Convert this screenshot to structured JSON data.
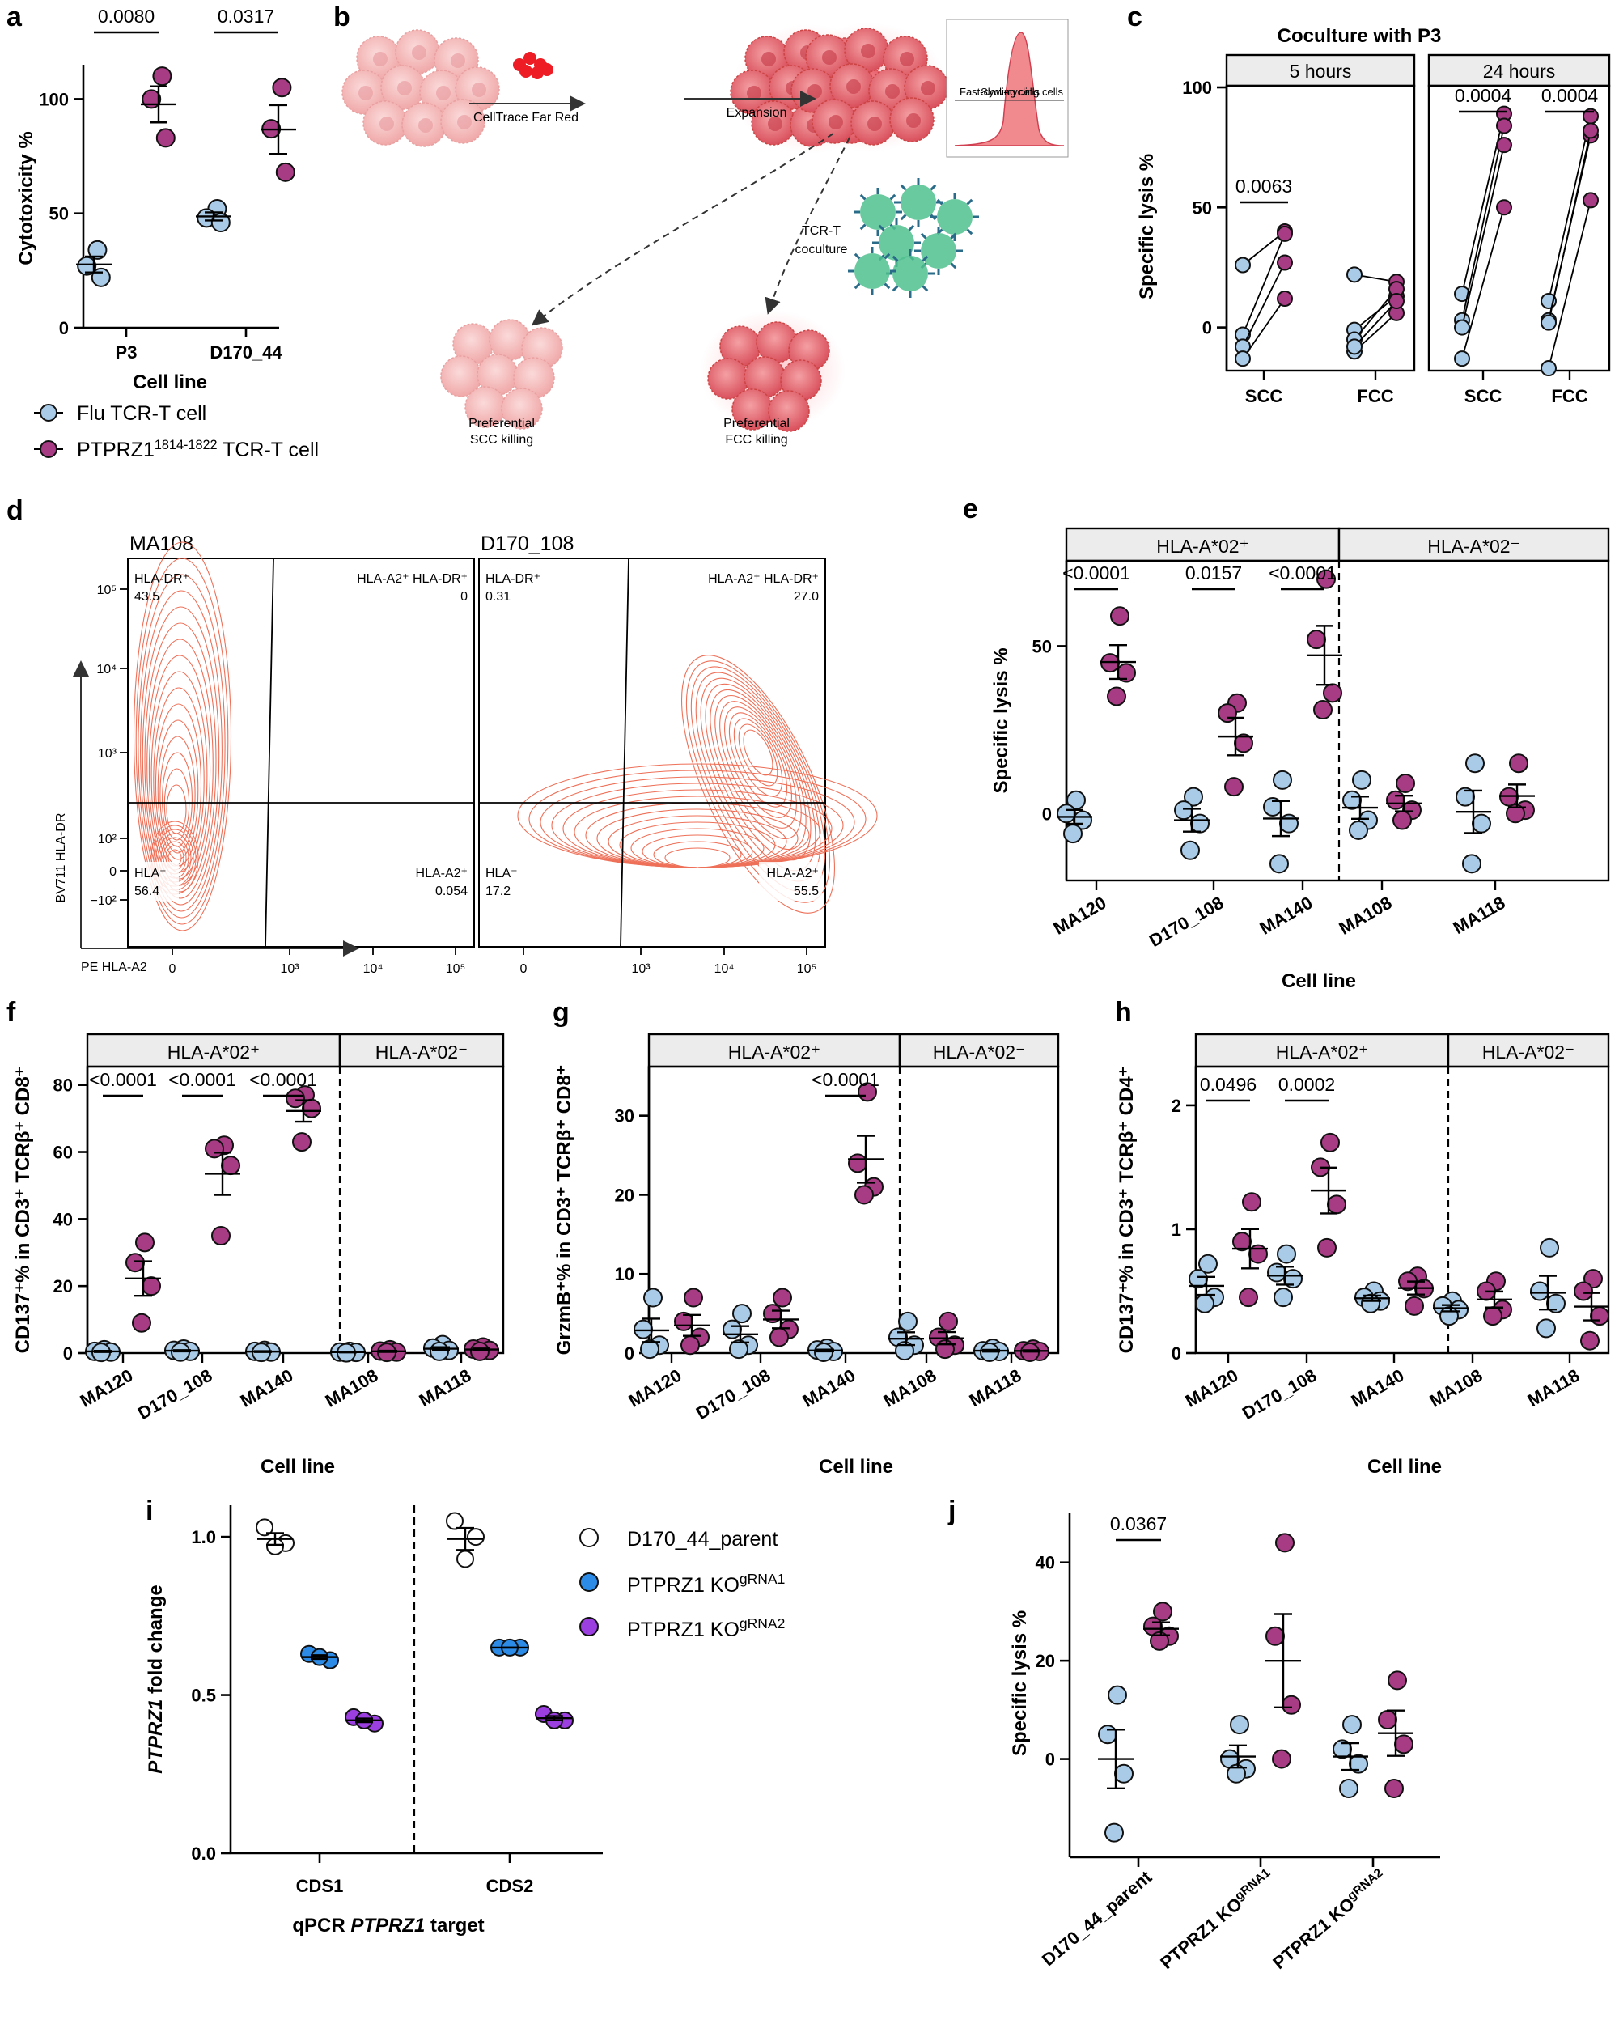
{
  "colors": {
    "flu": "#a9cbe8",
    "ptprz1": "#a83c84",
    "parent": "#ffffff",
    "ko1": "#2c8be6",
    "ko2": "#9b3fe0",
    "contour": "#ee7058",
    "strip": "#ececec",
    "cellPink": "#f2b8b8",
    "cellRed": "#e8747c",
    "tcr": "#4fbf8e"
  },
  "legend": {
    "flu": "Flu TCR-T cell",
    "ptprz1_pre": "PTPRZ1",
    "ptprz1_sup": "1814-1822",
    "ptprz1_post": " TCR-T cell",
    "parent": "D170_44_parent",
    "ko1_pre": "PTPRZ1 KO",
    "ko1_sup": "gRNA1",
    "ko2_pre": "PTPRZ1 KO",
    "ko2_sup": "gRNA2"
  },
  "panel_b": {
    "label": "b",
    "step1": "CellTrace Far Red",
    "step2": "Expansion",
    "step3a": "TCR-T",
    "step3b": "coculture",
    "flow_fast": "Fast-cycling cells",
    "flow_slow": "Slow-cycling cells",
    "out1a": "Preferential",
    "out1b": "SCC killing",
    "out2a": "Preferential",
    "out2b": "FCC killing"
  },
  "panel_d": {
    "label": "d",
    "left_title": "MA108",
    "right_title": "D170_108",
    "xlabel": "PE HLA-A2",
    "ylabel": "BV711 HLA-DR",
    "xticks": [
      "0",
      "10³",
      "10⁴",
      "10⁵"
    ],
    "yticks": [
      "10⁵",
      "10⁴",
      "10³",
      "10²",
      "0",
      "−10²"
    ],
    "q_dr": "HLA-DR⁺",
    "q_a2dr": "HLA-A2⁺ HLA-DR⁺",
    "q_neg": "HLA⁻",
    "q_a2": "HLA-A2⁺",
    "left_vals": {
      "dr": "43.5",
      "a2dr": "0",
      "neg": "56.4",
      "a2": "0.054"
    },
    "right_vals": {
      "dr": "0.31",
      "a2dr": "27.0",
      "neg": "17.2",
      "a2": "55.5"
    }
  },
  "chart_data": [
    {
      "panel": "a",
      "type": "scatter",
      "ylabel": "Cytotoxicity %",
      "xlabel": "Cell line",
      "categories": [
        "P3",
        "D170_44"
      ],
      "ylim": [
        0,
        115
      ],
      "yticks": [
        0,
        50,
        100
      ],
      "series": [
        {
          "name": "Flu TCR-T cell",
          "values": [
            [
              34,
              27,
              22
            ],
            [
              52,
              48,
              46
            ]
          ]
        },
        {
          "name": "PTPRZ1 1814-1822 TCR-T cell",
          "values": [
            [
              110,
              100,
              83
            ],
            [
              105,
              87,
              68
            ]
          ]
        }
      ],
      "pvalues": [
        {
          "text": "0.0080",
          "cat": 0
        },
        {
          "text": "0.0317",
          "cat": 1
        }
      ]
    },
    {
      "panel": "c",
      "type": "line",
      "title": "Coculture with P3",
      "ylabel": "Specific lysis %",
      "facets": [
        "5 hours",
        "24 hours"
      ],
      "categories": [
        "SCC",
        "FCC"
      ],
      "ylim": [
        -18,
        100
      ],
      "yticks": [
        0,
        50,
        100
      ],
      "pairs": [
        [
          [
            26,
            40
          ],
          [
            -3,
            39
          ],
          [
            -8,
            27
          ],
          [
            -13,
            12
          ]
        ],
        [
          [
            22,
            19
          ],
          [
            -1,
            13
          ],
          [
            -5,
            16
          ],
          [
            -10,
            6
          ],
          [
            -8,
            11
          ]
        ],
        [
          [
            14,
            89
          ],
          [
            3,
            84
          ],
          [
            0,
            76
          ],
          [
            -13,
            50
          ]
        ],
        [
          [
            11,
            88
          ],
          [
            3,
            80
          ],
          [
            2,
            82
          ],
          [
            -17,
            53
          ]
        ]
      ],
      "pvalues": [
        {
          "facet": 0,
          "text": "0.0063",
          "cat": 0
        },
        {
          "facet": 1,
          "text": "0.0004",
          "cat": 0
        },
        {
          "facet": 1,
          "text": "0.0004",
          "cat": 1
        }
      ]
    },
    {
      "panel": "e",
      "type": "scatter",
      "ylabel": "Specific lysis %",
      "xlabel": "Cell line",
      "strips": [
        "HLA-A*02⁺",
        "HLA-A*02⁻"
      ],
      "categories": [
        "MA120",
        "D170_108",
        "MA140",
        "MA108",
        "MA118"
      ],
      "ylim": [
        -20,
        75
      ],
      "yticks": [
        0,
        50
      ],
      "series": [
        {
          "name": "Flu TCR-T cell",
          "values": [
            [
              4,
              0,
              -2,
              -6
            ],
            [
              5,
              1,
              -3,
              -11
            ],
            [
              10,
              2,
              -3,
              -15
            ],
            [
              10,
              4,
              -2,
              -5
            ],
            [
              15,
              5,
              -3,
              -15
            ]
          ]
        },
        {
          "name": "PTPRZ1 1814-1822 TCR-T cell",
          "values": [
            [
              59,
              45,
              42,
              35
            ],
            [
              33,
              30,
              21,
              8
            ],
            [
              70,
              52,
              36,
              31
            ],
            [
              9,
              4,
              1,
              -2
            ],
            [
              15,
              5,
              1,
              0
            ]
          ]
        }
      ],
      "pvalues": [
        {
          "text": "<0.0001",
          "cat": 0
        },
        {
          "text": "0.0157",
          "cat": 1
        },
        {
          "text": "<0.0001",
          "cat": 2
        }
      ]
    },
    {
      "panel": "f",
      "type": "scatter",
      "ylabel": "CD137⁺% in CD3⁺ TCRβ⁺ CD8⁺",
      "xlabel": "Cell line",
      "strips": [
        "HLA-A*02⁺",
        "HLA-A*02⁻"
      ],
      "categories": [
        "MA120",
        "D170_108",
        "MA140",
        "MA108",
        "MA118"
      ],
      "ylim": [
        0,
        85
      ],
      "yticks": [
        0,
        20,
        40,
        60,
        80
      ],
      "series": [
        {
          "name": "Flu TCR-T cell",
          "values": [
            [
              1,
              0.5,
              0.3,
              0.2
            ],
            [
              1.2,
              0.8,
              0.5,
              0.3
            ],
            [
              0.8,
              0.5,
              0.3,
              0.2
            ],
            [
              0.5,
              0.3,
              0.2,
              0.1
            ],
            [
              2.5,
              1.5,
              0.8,
              0.5
            ]
          ]
        },
        {
          "name": "PTPRZ1 1814-1822 TCR-T cell",
          "values": [
            [
              33,
              27,
              20,
              9
            ],
            [
              62,
              61,
              56,
              35
            ],
            [
              77,
              76,
              73,
              63
            ],
            [
              1,
              0.6,
              0.3,
              0.2
            ],
            [
              1.8,
              1.2,
              0.8,
              0.5
            ]
          ]
        }
      ],
      "pvalues": [
        {
          "text": "<0.0001",
          "cat": 0
        },
        {
          "text": "<0.0001",
          "cat": 1
        },
        {
          "text": "<0.0001",
          "cat": 2
        }
      ]
    },
    {
      "panel": "g",
      "type": "scatter",
      "ylabel": "GrzmB⁺% in CD3⁺ TCRβ⁺ CD8⁺",
      "xlabel": "Cell line",
      "strips": [
        "HLA-A*02⁺",
        "HLA-A*02⁻"
      ],
      "categories": [
        "MA120",
        "D170_108",
        "MA140",
        "MA108",
        "MA118"
      ],
      "ylim": [
        0,
        36
      ],
      "yticks": [
        0,
        10,
        20,
        30
      ],
      "series": [
        {
          "name": "Flu TCR-T cell",
          "values": [
            [
              7,
              3,
              1,
              0.5
            ],
            [
              5,
              3,
              1,
              0.5
            ],
            [
              0.6,
              0.4,
              0.2,
              0.1
            ],
            [
              4,
              2,
              1,
              0.3
            ],
            [
              0.6,
              0.3,
              0.2,
              0.1
            ]
          ]
        },
        {
          "name": "PTPRZ1 1814-1822 TCR-T cell",
          "values": [
            [
              7,
              4,
              2,
              1
            ],
            [
              7,
              5,
              3,
              2
            ],
            [
              33,
              24,
              21,
              20
            ],
            [
              4,
              2,
              1,
              0.5
            ],
            [
              0.5,
              0.3,
              0.2,
              0.1
            ]
          ]
        }
      ],
      "pvalues": [
        {
          "text": "<0.0001",
          "cat": 2
        }
      ]
    },
    {
      "panel": "h",
      "type": "scatter",
      "ylabel": "CD137⁺% in CD3⁺ TCRβ⁺ CD4⁺",
      "xlabel": "Cell line",
      "strips": [
        "HLA-A*02⁺",
        "HLA-A*02⁻"
      ],
      "categories": [
        "MA120",
        "D170_108",
        "MA140",
        "MA108",
        "MA118"
      ],
      "ylim": [
        0,
        2.3
      ],
      "yticks": [
        0,
        1,
        2
      ],
      "series": [
        {
          "name": "Flu TCR-T cell",
          "values": [
            [
              0.72,
              0.6,
              0.45,
              0.4
            ],
            [
              0.8,
              0.65,
              0.6,
              0.45
            ],
            [
              0.5,
              0.45,
              0.42,
              0.4
            ],
            [
              0.42,
              0.38,
              0.35,
              0.3
            ],
            [
              0.85,
              0.5,
              0.4,
              0.2
            ]
          ]
        },
        {
          "name": "PTPRZ1 1814-1822 TCR-T cell",
          "values": [
            [
              1.22,
              0.9,
              0.8,
              0.45
            ],
            [
              1.7,
              1.5,
              1.2,
              0.85
            ],
            [
              0.62,
              0.58,
              0.52,
              0.38
            ],
            [
              0.58,
              0.5,
              0.35,
              0.3
            ],
            [
              0.6,
              0.5,
              0.3,
              0.1
            ]
          ]
        }
      ],
      "pvalues": [
        {
          "text": "0.0496",
          "cat": 0
        },
        {
          "text": "0.0002",
          "cat": 1
        }
      ]
    },
    {
      "panel": "i",
      "type": "scatter",
      "ylabel": "PTPRZ1 fold change",
      "xlabel": "qPCR PTPRZ1 target",
      "categories": [
        "CDS1",
        "CDS2"
      ],
      "ylim": [
        0,
        1.1
      ],
      "yticks": [
        0.0,
        0.5,
        1.0
      ],
      "series": [
        {
          "name": "D170_44_parent",
          "values": [
            [
              1.03,
              0.98,
              0.97
            ],
            [
              1.05,
              1.0,
              0.93
            ]
          ]
        },
        {
          "name": "PTPRZ1 KO gRNA1",
          "values": [
            [
              0.63,
              0.61,
              0.62
            ],
            [
              0.65,
              0.65,
              0.65
            ]
          ]
        },
        {
          "name": "PTPRZ1 KO gRNA2",
          "values": [
            [
              0.43,
              0.41,
              0.42
            ],
            [
              0.44,
              0.42,
              0.42
            ]
          ]
        }
      ]
    },
    {
      "panel": "j",
      "type": "scatter",
      "ylabel": "Specific lysis %",
      "categories": [
        "D170_44_parent",
        "PTPRZ1 KOgRNA1",
        "PTPRZ1 KOgRNA2"
      ],
      "ylim": [
        -20,
        50
      ],
      "yticks": [
        0,
        20,
        40
      ],
      "series": [
        {
          "name": "Flu TCR-T cell",
          "values": [
            [
              13,
              5,
              -3,
              -15
            ],
            [
              7,
              0,
              -2,
              -3
            ],
            [
              7,
              2,
              -1,
              -6
            ]
          ]
        },
        {
          "name": "PTPRZ1 1814-1822 TCR-T cell",
          "values": [
            [
              30,
              27,
              25,
              24
            ],
            [
              44,
              25,
              11,
              0
            ],
            [
              16,
              8,
              3,
              -6
            ]
          ]
        }
      ],
      "pvalues": [
        {
          "text": "0.0367",
          "cat": 0
        }
      ]
    }
  ]
}
